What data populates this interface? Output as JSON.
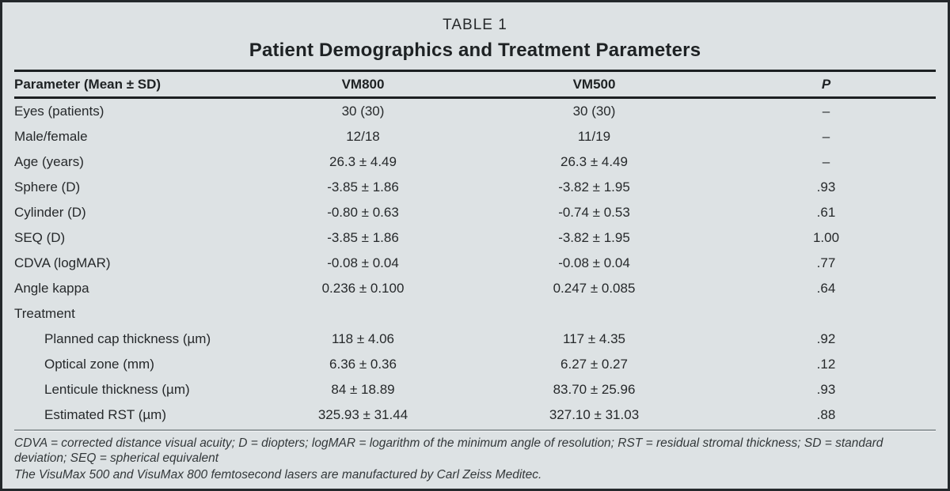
{
  "header": {
    "table_label": "TABLE 1",
    "title": "Patient Demographics and Treatment Parameters"
  },
  "table": {
    "columns": {
      "param": "Parameter (Mean ± SD)",
      "vm800": "VM800",
      "vm500": "VM500",
      "p": "P"
    },
    "rows": [
      {
        "label": "Eyes (patients)",
        "vm800": "30 (30)",
        "vm500": "30 (30)",
        "p": "–"
      },
      {
        "label": "Male/female",
        "vm800": "12/18",
        "vm500": "11/19",
        "p": "–"
      },
      {
        "label": "Age (years)",
        "vm800": "26.3 ± 4.49",
        "vm500": "26.3 ± 4.49",
        "p": "–"
      },
      {
        "label": "Sphere (D)",
        "vm800": "-3.85 ± 1.86",
        "vm500": "-3.82 ± 1.95",
        "p": ".93"
      },
      {
        "label": "Cylinder (D)",
        "vm800": "-0.80 ± 0.63",
        "vm500": "-0.74 ± 0.53",
        "p": ".61"
      },
      {
        "label": "SEQ (D)",
        "vm800": "-3.85 ± 1.86",
        "vm500": "-3.82 ± 1.95",
        "p": "1.00"
      },
      {
        "label": "CDVA (logMAR)",
        "vm800": "-0.08 ± 0.04",
        "vm500": "-0.08 ± 0.04",
        "p": ".77"
      },
      {
        "label": "Angle kappa",
        "vm800": "0.236 ± 0.100",
        "vm500": "0.247 ± 0.085",
        "p": ".64"
      },
      {
        "label": "Treatment",
        "vm800": "",
        "vm500": "",
        "p": ""
      },
      {
        "label": "Planned cap thickness (µm)",
        "vm800": "118 ± 4.06",
        "vm500": "117 ± 4.35",
        "p": ".92"
      },
      {
        "label": "Optical zone (mm)",
        "vm800": "6.36 ± 0.36",
        "vm500": "6.27 ± 0.27",
        "p": ".12"
      },
      {
        "label": "Lenticule thickness (µm)",
        "vm800": "84 ± 18.89",
        "vm500": "83.70 ± 25.96",
        "p": ".93"
      },
      {
        "label": "Estimated RST (µm)",
        "vm800": "325.93 ± 31.44",
        "vm500": "327.10 ± 31.03",
        "p": ".88"
      }
    ]
  },
  "footnotes": {
    "abbreviations": "CDVA = corrected distance visual acuity; D = diopters; logMAR = logarithm of the minimum angle of resolution; RST = residual stromal thickness; SD = standard deviation; SEQ = spherical equivalent",
    "manufacturer": "The VisuMax 500 and VisuMax 800 femtosecond lasers are manufactured by Carl Zeiss Meditec."
  },
  "colors": {
    "background": "#dde2e4",
    "frame_border": "#23282b",
    "rule": "#1c2022",
    "divider": "#969da0",
    "text": "#26292b"
  }
}
